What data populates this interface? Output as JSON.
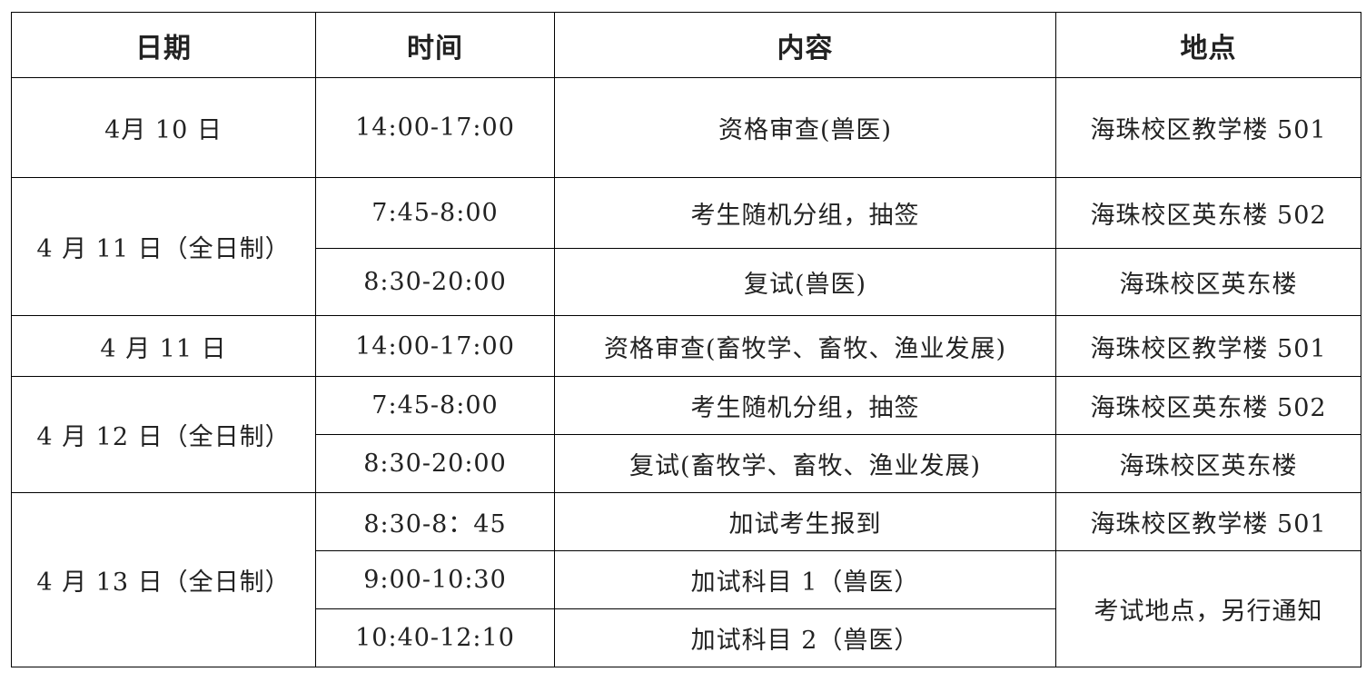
{
  "headers": [
    "日期",
    "时间",
    "内容",
    "地点"
  ],
  "rows": [
    {
      "date": "4月 10 日",
      "time": "14:00-17:00",
      "content": "资格审查(兽医)",
      "place": "海珠校区教学楼 501"
    },
    {
      "date": "4 月 11 日（全日制）",
      "time": "7:45-8:00",
      "content": "考生随机分组，抽签",
      "place": "海珠校区英东楼 502"
    },
    {
      "time": "8:30-20:00",
      "content": "复试(兽医)",
      "place": "海珠校区英东楼"
    },
    {
      "date": "4 月 11 日",
      "time": "14:00-17:00",
      "content": "资格审查(畜牧学、畜牧、渔业发展)",
      "place": "海珠校区教学楼 501"
    },
    {
      "date": "4 月 12 日（全日制）",
      "time": "7:45-8:00",
      "content": "考生随机分组，抽签",
      "place": "海珠校区英东楼 502"
    },
    {
      "time": "8:30-20:00",
      "content": "复试(畜牧学、畜牧、渔业发展)",
      "place": "海珠校区英东楼"
    },
    {
      "date": "4 月 13 日（全日制）",
      "time": "8:30-8：45",
      "content": "加试考生报到",
      "place": "海珠校区教学楼 501"
    },
    {
      "time": "9:00-10:30",
      "content": "加试科目 1（兽医）",
      "place": "考试地点，另行通知"
    },
    {
      "time": "10:40-12:10",
      "content": "加试科目 2（兽医）"
    }
  ]
}
